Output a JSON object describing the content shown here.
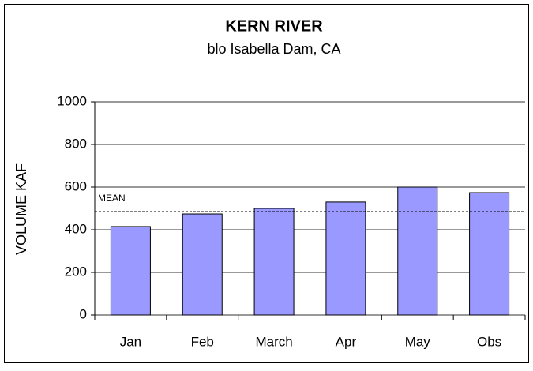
{
  "chart_data": {
    "type": "bar",
    "title": "KERN RIVER",
    "subtitle": "blo Isabella Dam, CA",
    "y_label": "VOLUME KAF",
    "categories": [
      "Jan",
      "Feb",
      "March",
      "Apr",
      "May",
      "Obs"
    ],
    "values": [
      415,
      474,
      500,
      530,
      600,
      574
    ],
    "color": "#9999ff",
    "ylim": [
      0,
      1000
    ],
    "yticks": [
      0,
      200,
      400,
      600,
      800,
      1000
    ],
    "grid": true,
    "mean": {
      "label": "MEAN",
      "value": 485
    }
  }
}
